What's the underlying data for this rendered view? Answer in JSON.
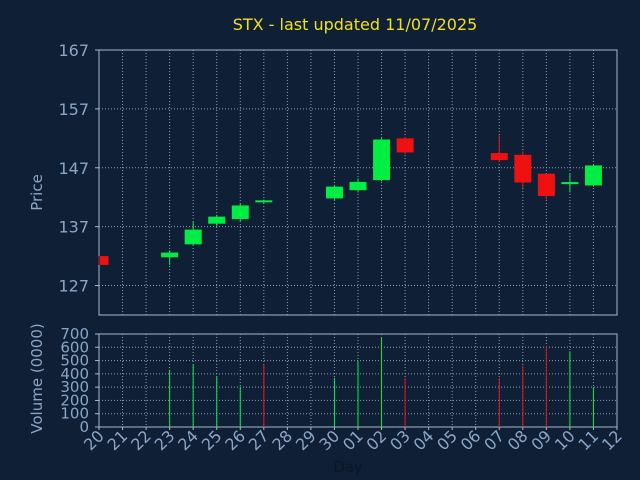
{
  "title": "STX - last updated 11/07/2025",
  "chart_data": [
    {
      "type": "candlestick",
      "ylabel": "Price",
      "ylim": [
        122,
        167
      ],
      "yticks": [
        127,
        137,
        147,
        157,
        167
      ],
      "grid": true,
      "x": [
        "20",
        "21",
        "22",
        "23",
        "24",
        "25",
        "26",
        "27",
        "28",
        "29",
        "30",
        "01",
        "02",
        "03",
        "04",
        "05",
        "06",
        "07",
        "08",
        "09",
        "10",
        "11",
        "12"
      ],
      "candles": [
        {
          "day": "20",
          "open": 132.0,
          "high": 132.0,
          "low": 130.5,
          "close": 130.5
        },
        {
          "day": "23",
          "open": 131.8,
          "high": 133.0,
          "low": 130.5,
          "close": 132.6
        },
        {
          "day": "24",
          "open": 134.0,
          "high": 137.8,
          "low": 133.8,
          "close": 136.5
        },
        {
          "day": "25",
          "open": 137.5,
          "high": 139.0,
          "low": 137.0,
          "close": 138.7
        },
        {
          "day": "26",
          "open": 138.3,
          "high": 141.0,
          "low": 137.8,
          "close": 140.6
        },
        {
          "day": "27",
          "open": 141.3,
          "high": 141.6,
          "low": 141.0,
          "close": 141.3
        },
        {
          "day": "30",
          "open": 141.8,
          "high": 144.1,
          "low": 141.5,
          "close": 143.8
        },
        {
          "day": "01",
          "open": 143.2,
          "high": 145.2,
          "low": 142.8,
          "close": 144.6
        },
        {
          "day": "02",
          "open": 144.9,
          "high": 152.2,
          "low": 144.7,
          "close": 151.8
        },
        {
          "day": "03",
          "open": 152.0,
          "high": 152.2,
          "low": 149.3,
          "close": 149.6
        },
        {
          "day": "07",
          "open": 149.5,
          "high": 152.5,
          "low": 148.0,
          "close": 148.3
        },
        {
          "day": "08",
          "open": 149.2,
          "high": 149.8,
          "low": 143.6,
          "close": 144.5
        },
        {
          "day": "09",
          "open": 146.0,
          "high": 146.0,
          "low": 141.6,
          "close": 142.2
        },
        {
          "day": "10",
          "open": 144.4,
          "high": 146.0,
          "low": 142.8,
          "close": 144.4
        },
        {
          "day": "11",
          "open": 144.0,
          "high": 147.5,
          "low": 143.8,
          "close": 147.4
        }
      ]
    },
    {
      "type": "bar",
      "ylabel": "Volume (0000)",
      "xlabel": "Day",
      "ylim": [
        0,
        700
      ],
      "yticks": [
        0,
        100,
        200,
        300,
        400,
        500,
        600,
        700
      ],
      "grid": true,
      "bars": [
        {
          "day": "23",
          "value": 430,
          "direction": "up"
        },
        {
          "day": "24",
          "value": 470,
          "direction": "up"
        },
        {
          "day": "25",
          "value": 380,
          "direction": "up"
        },
        {
          "day": "26",
          "value": 300,
          "direction": "up"
        },
        {
          "day": "27",
          "value": 470,
          "direction": "down"
        },
        {
          "day": "30",
          "value": 370,
          "direction": "up"
        },
        {
          "day": "01",
          "value": 500,
          "direction": "up"
        },
        {
          "day": "02",
          "value": 670,
          "direction": "up"
        },
        {
          "day": "03",
          "value": 370,
          "direction": "down"
        },
        {
          "day": "07",
          "value": 370,
          "direction": "down"
        },
        {
          "day": "08",
          "value": 460,
          "direction": "down"
        },
        {
          "day": "09",
          "value": 610,
          "direction": "down"
        },
        {
          "day": "10",
          "value": 570,
          "direction": "up"
        },
        {
          "day": "11",
          "value": 300,
          "direction": "up"
        }
      ]
    }
  ],
  "colors": {
    "background": "#0f1f35",
    "plot_background": "#0f1f35",
    "grid": "#8aa0bc",
    "frame": "#aab8cc",
    "axis_text": "#8aa6c8",
    "title": "#f0e020",
    "up": "#00ee44",
    "down": "#ee1111",
    "x_label": "#0b1526"
  }
}
